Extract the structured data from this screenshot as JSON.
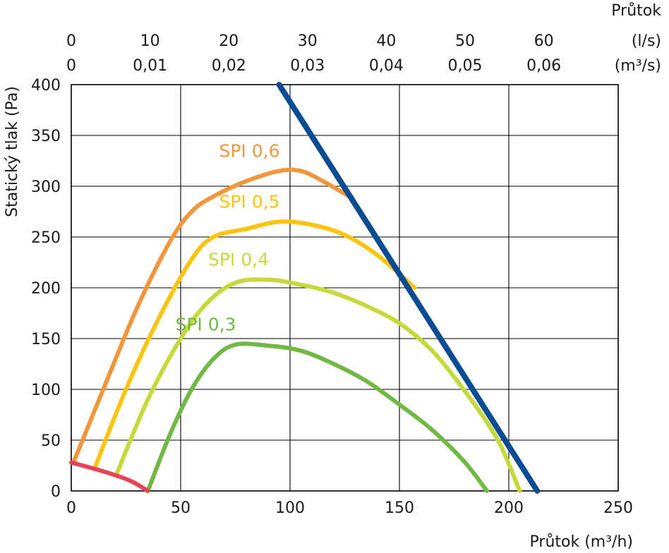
{
  "chart_data": {
    "type": "line",
    "xlabel": "Průtok (m³/h)",
    "ylabel": "Statický tlak (Pa)",
    "top_title": "Průtok",
    "top_unit_ls": "(l/s)",
    "top_unit_m3s": "(m³/s)",
    "xlim": [
      0,
      250
    ],
    "ylim": [
      0,
      400
    ],
    "grid": true,
    "x_ticks": [
      "0",
      "50",
      "100",
      "150",
      "200",
      "250"
    ],
    "y_ticks": [
      "0",
      "50",
      "100",
      "150",
      "200",
      "250",
      "300",
      "350",
      "400"
    ],
    "top_ticks_ls": [
      "0",
      "10",
      "20",
      "30",
      "40",
      "50",
      "60"
    ],
    "top_ticks_m3s": [
      "0",
      "0,01",
      "0,02",
      "0,03",
      "0,04",
      "0,05",
      "0,06"
    ],
    "series": [
      {
        "name": "SPI 0,6",
        "color": "#f0963c",
        "x": [
          1,
          15,
          30,
          45,
          55,
          65,
          80,
          95,
          105,
          115,
          127
        ],
        "y": [
          28,
          102,
          180,
          245,
          275,
          290,
          305,
          315,
          315,
          305,
          290
        ]
      },
      {
        "name": "SPI 0,5",
        "color": "#fbc40d",
        "x": [
          11,
          25,
          40,
          55,
          65,
          80,
          95,
          110,
          125,
          140,
          157
        ],
        "y": [
          24,
          100,
          170,
          228,
          250,
          258,
          265,
          262,
          252,
          232,
          200
        ]
      },
      {
        "name": "SPI 0,4",
        "color": "#c6d93b",
        "x": [
          21,
          35,
          50,
          62,
          75,
          90,
          105,
          120,
          135,
          150,
          165,
          180,
          195,
          205
        ],
        "y": [
          18,
          90,
          150,
          185,
          205,
          208,
          203,
          195,
          182,
          165,
          138,
          98,
          50,
          0
        ]
      },
      {
        "name": "SPI 0,3",
        "color": "#72b844",
        "x": [
          35,
          45,
          55,
          65,
          75,
          90,
          105,
          120,
          135,
          150,
          165,
          180,
          190
        ],
        "y": [
          0,
          55,
          100,
          130,
          144,
          143,
          138,
          125,
          108,
          85,
          60,
          28,
          0
        ]
      },
      {
        "name": "",
        "color": "#e84459",
        "x": [
          0,
          15,
          27,
          35
        ],
        "y": [
          28,
          19,
          10,
          0
        ]
      },
      {
        "name": "",
        "color": "#0a4c92",
        "x": [
          95,
          213
        ],
        "y": [
          400,
          0
        ]
      }
    ]
  }
}
